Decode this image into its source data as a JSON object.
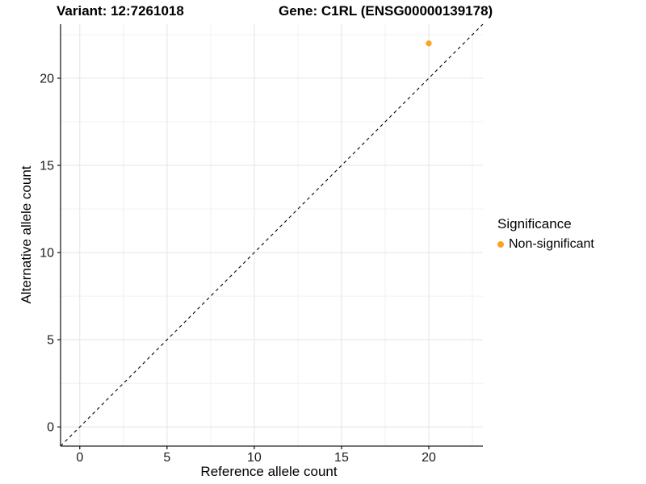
{
  "titles": {
    "variant": "Variant: 12:7261018",
    "gene": "Gene: C1RL (ENSG00000139178)"
  },
  "chart_data": {
    "type": "scatter",
    "xlabel": "Reference allele count",
    "ylabel": "Alternative allele count",
    "xlim": [
      -1.1,
      23.1
    ],
    "ylim": [
      -1.1,
      23.1
    ],
    "x_ticks_major": [
      0,
      5,
      10,
      15,
      20
    ],
    "x_ticks_minor": [
      2.5,
      7.5,
      12.5,
      17.5,
      22.5
    ],
    "y_ticks_major": [
      0,
      5,
      10,
      15,
      20
    ],
    "y_ticks_minor": [
      2.5,
      7.5,
      12.5,
      17.5,
      22.5
    ],
    "grid": "major+minor",
    "identity_line": {
      "slope": 1,
      "intercept": 0,
      "style": "dashed",
      "color": "#000000"
    },
    "series": [
      {
        "name": "Non-significant",
        "color": "#F9A227",
        "points": [
          {
            "x": 20,
            "y": 22
          }
        ]
      }
    ],
    "legend": {
      "title": "Significance",
      "position": "right",
      "items": [
        {
          "label": "Non-significant",
          "color": "#F9A227"
        }
      ]
    },
    "colors": {
      "grid_major": "#E4E4E4",
      "grid_minor": "#F1F1F1",
      "axis_line": "#222222",
      "tick": "#222222",
      "point": "#F9A227"
    }
  }
}
